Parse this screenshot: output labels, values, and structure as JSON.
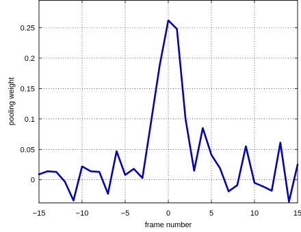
{
  "chart_data": {
    "type": "line",
    "title": "",
    "xlabel": "frame number",
    "ylabel": "pooling weight",
    "xlim": [
      -15,
      15
    ],
    "ylim": [
      -0.038,
      0.295
    ],
    "grid": true,
    "xticks": [
      -15,
      -10,
      -5,
      0,
      5,
      10,
      15
    ],
    "xtick_labels": [
      "−15",
      "−10",
      "−5",
      "0",
      "5",
      "10",
      "15"
    ],
    "yticks": [
      0,
      0.05,
      0.1,
      0.15,
      0.2,
      0.25
    ],
    "ytick_labels": [
      "0",
      "0.05",
      "0.1",
      "0.15",
      "0.2",
      "0.25"
    ],
    "series": [
      {
        "color": "#0000cc",
        "x": [
          -15,
          -14,
          -13,
          -12,
          -11,
          -10,
          -9,
          -8,
          -7,
          -6,
          -5,
          -4,
          -3,
          -2,
          -1,
          0,
          1,
          2,
          3,
          4,
          5,
          6,
          7,
          8,
          9,
          10,
          11,
          12,
          13,
          14,
          15
        ],
        "y": [
          0.009,
          0.014,
          0.013,
          -0.003,
          -0.034,
          0.022,
          0.014,
          0.013,
          -0.023,
          0.047,
          0.008,
          0.018,
          0.003,
          0.095,
          0.188,
          0.262,
          0.248,
          0.1,
          0.015,
          0.085,
          0.041,
          0.019,
          -0.019,
          -0.009,
          0.055,
          -0.005,
          -0.011,
          -0.018,
          0.061,
          -0.036,
          0.025
        ]
      }
    ]
  }
}
